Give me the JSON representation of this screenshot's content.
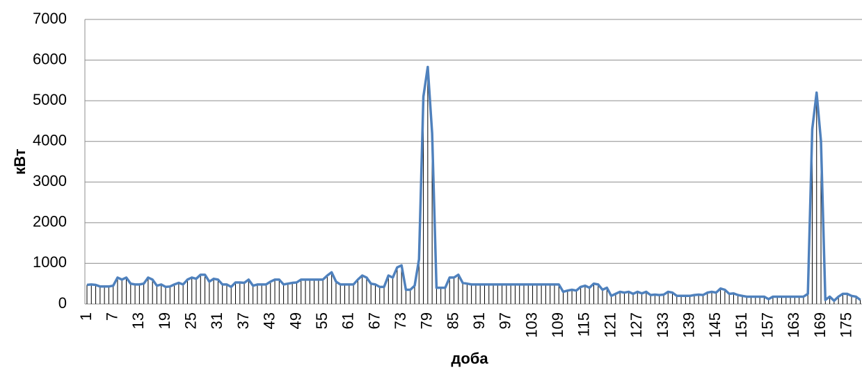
{
  "chart_data": {
    "type": "line",
    "x_label": "доба",
    "y_label": "кВт",
    "categories": [
      "1",
      null,
      null,
      null,
      null,
      null,
      "7",
      null,
      null,
      null,
      null,
      null,
      "13",
      null,
      null,
      null,
      null,
      null,
      "19",
      null,
      null,
      null,
      null,
      null,
      "25",
      null,
      null,
      null,
      null,
      null,
      "31",
      null,
      null,
      null,
      null,
      null,
      "37",
      null,
      null,
      null,
      null,
      null,
      "43",
      null,
      null,
      null,
      null,
      null,
      "49",
      null,
      null,
      null,
      null,
      null,
      "55",
      null,
      null,
      null,
      null,
      null,
      "61",
      null,
      null,
      null,
      null,
      null,
      "67",
      null,
      null,
      null,
      null,
      null,
      "73",
      null,
      null,
      null,
      null,
      null,
      "79",
      null,
      null,
      null,
      null,
      null,
      "85",
      null,
      null,
      null,
      null,
      null,
      "91",
      null,
      null,
      null,
      null,
      null,
      "97",
      null,
      null,
      null,
      null,
      null,
      "103",
      null,
      null,
      null,
      null,
      null,
      "109",
      null,
      null,
      null,
      null,
      null,
      "115",
      null,
      null,
      null,
      null,
      null,
      "121",
      null,
      null,
      null,
      null,
      null,
      "127",
      null,
      null,
      null,
      null,
      null,
      "133",
      null,
      null,
      null,
      null,
      null,
      "139",
      null,
      null,
      null,
      null,
      null,
      "145",
      null,
      null,
      null,
      null,
      null,
      "151",
      null,
      null,
      null,
      null,
      null,
      "157",
      null,
      null,
      null,
      null,
      null,
      "163",
      null,
      null,
      null,
      null,
      null,
      "169",
      null,
      null,
      null,
      null,
      null,
      "175",
      null,
      null,
      null
    ],
    "values": [
      470,
      480,
      470,
      430,
      430,
      430,
      450,
      650,
      600,
      650,
      500,
      480,
      480,
      500,
      650,
      600,
      450,
      480,
      420,
      430,
      480,
      520,
      480,
      600,
      650,
      620,
      720,
      720,
      550,
      620,
      600,
      480,
      480,
      420,
      530,
      530,
      520,
      600,
      450,
      480,
      480,
      480,
      550,
      600,
      600,
      480,
      500,
      520,
      530,
      600,
      600,
      600,
      600,
      600,
      600,
      700,
      780,
      550,
      480,
      480,
      480,
      480,
      600,
      700,
      650,
      500,
      480,
      420,
      420,
      700,
      650,
      900,
      950,
      350,
      350,
      450,
      1100,
      5100,
      5830,
      4200,
      400,
      400,
      400,
      650,
      650,
      720,
      520,
      500,
      480,
      480,
      480,
      480,
      480,
      480,
      480,
      480,
      480,
      480,
      480,
      480,
      480,
      480,
      480,
      480,
      480,
      480,
      480,
      480,
      480,
      300,
      330,
      350,
      330,
      420,
      450,
      400,
      500,
      480,
      350,
      400,
      200,
      250,
      300,
      280,
      300,
      250,
      300,
      260,
      300,
      220,
      230,
      220,
      230,
      300,
      280,
      200,
      200,
      200,
      200,
      220,
      230,
      220,
      280,
      300,
      280,
      380,
      350,
      250,
      260,
      220,
      200,
      180,
      180,
      180,
      180,
      180,
      120,
      180,
      180,
      180,
      180,
      180,
      180,
      180,
      180,
      250,
      4300,
      5200,
      4000,
      100,
      180,
      80,
      180,
      250,
      250,
      200,
      180,
      100
    ],
    "color": "#4f81bd",
    "drop_line_color": "#000000",
    "ylim": [
      0,
      7000
    ],
    "yticks": [
      0,
      1000,
      2000,
      3000,
      4000,
      5000,
      6000,
      7000
    ],
    "grid": true
  }
}
